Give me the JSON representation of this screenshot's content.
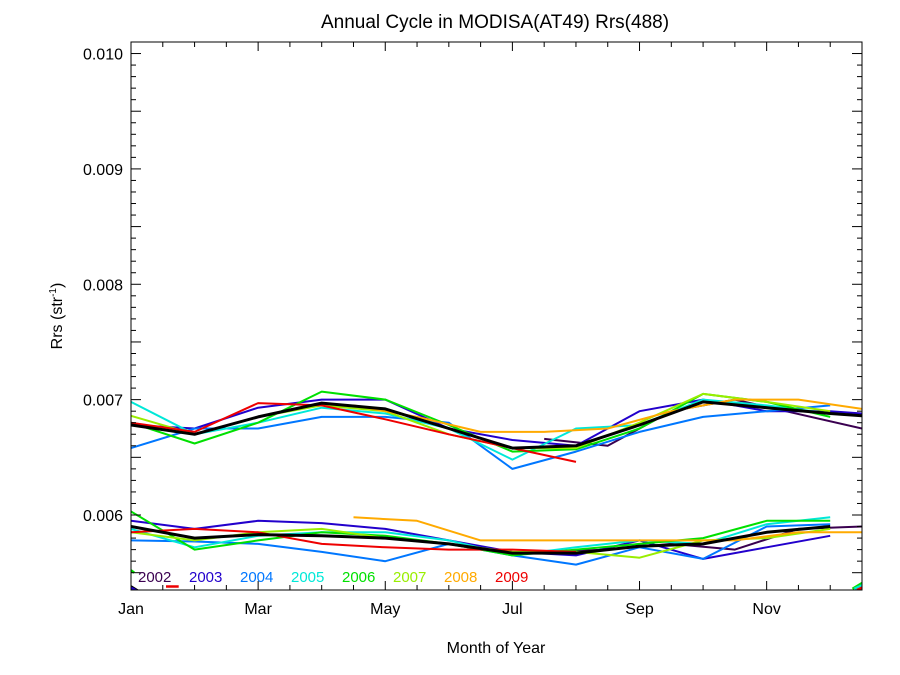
{
  "chart_data": {
    "type": "line",
    "title": "Annual Cycle in MODISA(AT49) Rrs(488)",
    "xlabel": "Month of Year",
    "ylabel_main": "Rrs (str",
    "ylabel_sup": "-1",
    "ylabel_close": ")",
    "xlim": [
      1,
      12.5
    ],
    "ylim": [
      0.00535,
      0.0101
    ],
    "xticks": [
      {
        "value": 1,
        "label": "Jan"
      },
      {
        "value": 3,
        "label": "Mar"
      },
      {
        "value": 5,
        "label": "May"
      },
      {
        "value": 7,
        "label": "Jul"
      },
      {
        "value": 9,
        "label": "Sep"
      },
      {
        "value": 11,
        "label": "Nov"
      }
    ],
    "yticks": [
      {
        "value": 0.006,
        "label": "0.006"
      },
      {
        "value": 0.007,
        "label": "0.007"
      },
      {
        "value": 0.008,
        "label": "0.008"
      },
      {
        "value": 0.009,
        "label": "0.009"
      },
      {
        "value": 0.01,
        "label": "0.010"
      }
    ],
    "grid": false,
    "legend_position": "bottom-left",
    "series": [
      {
        "name": "2002",
        "color": "#3a0050",
        "upper": [
          [
            7.5,
            0.00666
          ],
          [
            8.5,
            0.0066
          ],
          [
            9.5,
            0.0069
          ],
          [
            10.5,
            0.007
          ],
          [
            12.5,
            0.00675
          ]
        ],
        "lower": [
          [
            7.5,
            0.00568
          ],
          [
            8.5,
            0.0057
          ],
          [
            9.5,
            0.00575
          ],
          [
            10.5,
            0.0057
          ],
          [
            11.5,
            0.00588
          ],
          [
            12.5,
            0.0059
          ]
        ]
      },
      {
        "name": "2003",
        "color": "#2200cc",
        "upper": [
          [
            1,
            0.00678
          ],
          [
            2,
            0.00675
          ],
          [
            3,
            0.00693
          ],
          [
            4,
            0.007
          ],
          [
            5,
            0.007
          ],
          [
            6,
            0.00675
          ],
          [
            7,
            0.00665
          ],
          [
            8,
            0.0066
          ],
          [
            9,
            0.0069
          ],
          [
            10,
            0.007
          ],
          [
            11,
            0.0069
          ],
          [
            12,
            0.0069
          ],
          [
            12.5,
            0.00688
          ]
        ],
        "lower": [
          [
            1,
            0.00595
          ],
          [
            2,
            0.00588
          ],
          [
            3,
            0.00595
          ],
          [
            4,
            0.00593
          ],
          [
            5,
            0.00588
          ],
          [
            6,
            0.00578
          ],
          [
            7,
            0.00568
          ],
          [
            8,
            0.00565
          ],
          [
            9,
            0.00578
          ],
          [
            10,
            0.00562
          ],
          [
            11,
            0.00572
          ],
          [
            12,
            0.00582
          ]
        ]
      },
      {
        "name": "2004",
        "color": "#0077ff",
        "upper": [
          [
            1,
            0.00658
          ],
          [
            2,
            0.00675
          ],
          [
            3,
            0.00675
          ],
          [
            4,
            0.00685
          ],
          [
            5,
            0.00685
          ],
          [
            6,
            0.0068
          ],
          [
            7,
            0.0064
          ],
          [
            8,
            0.00655
          ],
          [
            9,
            0.00672
          ],
          [
            10,
            0.00685
          ],
          [
            11,
            0.0069
          ],
          [
            12,
            0.00695
          ]
        ],
        "lower": [
          [
            1,
            0.00578
          ],
          [
            2,
            0.00577
          ],
          [
            3,
            0.00575
          ],
          [
            4,
            0.00568
          ],
          [
            5,
            0.0056
          ],
          [
            6,
            0.00575
          ],
          [
            7,
            0.00565
          ],
          [
            8,
            0.00557
          ],
          [
            9,
            0.00572
          ],
          [
            10,
            0.00562
          ],
          [
            11,
            0.0059
          ],
          [
            12,
            0.00592
          ]
        ]
      },
      {
        "name": "2005",
        "color": "#00e8d8",
        "upper": [
          [
            1,
            0.00698
          ],
          [
            2,
            0.0067
          ],
          [
            3,
            0.0068
          ],
          [
            4,
            0.00693
          ],
          [
            5,
            0.00688
          ],
          [
            6,
            0.00675
          ],
          [
            7,
            0.00648
          ],
          [
            8,
            0.00675
          ],
          [
            9,
            0.00678
          ],
          [
            10,
            0.007
          ],
          [
            11,
            0.00695
          ],
          [
            12,
            0.00688
          ]
        ],
        "lower": [
          [
            1,
            0.00588
          ],
          [
            2,
            0.00572
          ],
          [
            3,
            0.00582
          ],
          [
            4,
            0.00585
          ],
          [
            5,
            0.00585
          ],
          [
            6,
            0.00578
          ],
          [
            7,
            0.00565
          ],
          [
            8,
            0.00572
          ],
          [
            9,
            0.00578
          ],
          [
            10,
            0.00575
          ],
          [
            11,
            0.00592
          ],
          [
            12,
            0.00598
          ]
        ]
      },
      {
        "name": "2006",
        "color": "#00e000",
        "upper": [
          [
            1,
            0.0068
          ],
          [
            2,
            0.00662
          ],
          [
            3,
            0.0068
          ],
          [
            4,
            0.00707
          ],
          [
            5,
            0.007
          ],
          [
            6,
            0.00678
          ],
          [
            7,
            0.00655
          ],
          [
            8,
            0.00657
          ],
          [
            9,
            0.00675
          ],
          [
            10,
            0.00705
          ],
          [
            11,
            0.00698
          ],
          [
            12,
            0.00685
          ]
        ],
        "lower": [
          [
            1,
            0.00603
          ],
          [
            2,
            0.0057
          ],
          [
            3,
            0.00578
          ],
          [
            4,
            0.00585
          ],
          [
            5,
            0.00582
          ],
          [
            6,
            0.00575
          ],
          [
            7,
            0.00565
          ],
          [
            8,
            0.0057
          ],
          [
            9,
            0.00575
          ],
          [
            10,
            0.0058
          ],
          [
            11,
            0.00595
          ],
          [
            12,
            0.00595
          ]
        ]
      },
      {
        "name": "2007",
        "color": "#99ee00",
        "upper": [
          [
            1,
            0.00686
          ],
          [
            2,
            0.0067
          ],
          [
            3,
            0.00685
          ],
          [
            4,
            0.00695
          ],
          [
            5,
            0.0069
          ],
          [
            6,
            0.0067
          ],
          [
            7,
            0.00658
          ],
          [
            8,
            0.00658
          ],
          [
            9,
            0.0068
          ],
          [
            10,
            0.00705
          ],
          [
            11,
            0.00698
          ],
          [
            12,
            0.0069
          ]
        ],
        "lower": [
          [
            1,
            0.00585
          ],
          [
            2,
            0.00578
          ],
          [
            3,
            0.00585
          ],
          [
            4,
            0.00588
          ],
          [
            5,
            0.0058
          ],
          [
            6,
            0.00575
          ],
          [
            7,
            0.00568
          ],
          [
            8,
            0.00568
          ],
          [
            9,
            0.00563
          ],
          [
            10,
            0.00578
          ],
          [
            11,
            0.0058
          ],
          [
            12,
            0.00588
          ]
        ]
      },
      {
        "name": "2008",
        "color": "#ffaa00",
        "upper": [
          [
            4.5,
            0.00695
          ],
          [
            5.5,
            0.00685
          ],
          [
            6.5,
            0.00672
          ],
          [
            7.5,
            0.00672
          ],
          [
            8.5,
            0.00675
          ],
          [
            9.5,
            0.0069
          ],
          [
            10.5,
            0.007
          ],
          [
            11.5,
            0.007
          ],
          [
            12.5,
            0.00692
          ]
        ],
        "lower": [
          [
            4.5,
            0.00598
          ],
          [
            5.5,
            0.00595
          ],
          [
            6.5,
            0.00578
          ],
          [
            7.5,
            0.00578
          ],
          [
            8.5,
            0.00578
          ],
          [
            9.5,
            0.00578
          ],
          [
            10.5,
            0.00578
          ],
          [
            11.5,
            0.00585
          ],
          [
            12.5,
            0.00585
          ]
        ]
      },
      {
        "name": "2009",
        "color": "#ee0000",
        "upper": [
          [
            1,
            0.0068
          ],
          [
            2,
            0.00672
          ],
          [
            3,
            0.00697
          ],
          [
            4,
            0.00695
          ],
          [
            5,
            0.00683
          ],
          [
            6,
            0.0067
          ],
          [
            7,
            0.00658
          ],
          [
            8,
            0.00646
          ]
        ],
        "lower": [
          [
            1,
            0.00585
          ],
          [
            2,
            0.00588
          ],
          [
            3,
            0.00585
          ],
          [
            4,
            0.00575
          ],
          [
            5,
            0.00572
          ],
          [
            6,
            0.0057
          ],
          [
            7,
            0.0057
          ],
          [
            8,
            0.00568
          ]
        ]
      }
    ],
    "mean_series": {
      "color": "#000000",
      "upper": [
        [
          1,
          0.00678
        ],
        [
          2,
          0.0067
        ],
        [
          3,
          0.00685
        ],
        [
          4,
          0.00697
        ],
        [
          5,
          0.00692
        ],
        [
          6,
          0.00675
        ],
        [
          7,
          0.00658
        ],
        [
          8,
          0.0066
        ],
        [
          9,
          0.00678
        ],
        [
          10,
          0.00698
        ],
        [
          11,
          0.00693
        ],
        [
          12,
          0.00688
        ],
        [
          12.5,
          0.00686
        ]
      ],
      "lower": [
        [
          1,
          0.0059
        ],
        [
          2,
          0.0058
        ],
        [
          3,
          0.00583
        ],
        [
          4,
          0.00582
        ],
        [
          5,
          0.0058
        ],
        [
          6,
          0.00575
        ],
        [
          7,
          0.00567
        ],
        [
          8,
          0.00567
        ],
        [
          9,
          0.00573
        ],
        [
          10,
          0.00575
        ],
        [
          11,
          0.00585
        ],
        [
          12,
          0.0059
        ]
      ]
    },
    "bottom_fragments": [
      {
        "color": "#000000",
        "points": [
          [
            1,
            0.00538
          ],
          [
            1.15,
            0.00533
          ]
        ]
      },
      {
        "color": "#2200cc",
        "points": [
          [
            1,
            0.00537
          ],
          [
            1.1,
            0.00534
          ]
        ]
      },
      {
        "color": "#ee0000",
        "points": [
          [
            1.55,
            0.00538
          ],
          [
            1.75,
            0.00538
          ]
        ]
      },
      {
        "color": "#00e000",
        "points": [
          [
            1,
            0.00552
          ],
          [
            1.05,
            0.0055
          ]
        ]
      },
      {
        "color": "#00e000",
        "points": [
          [
            12.35,
            0.00536
          ],
          [
            12.5,
            0.00541
          ]
        ]
      },
      {
        "color": "#00e8d8",
        "points": [
          [
            12.38,
            0.00536
          ],
          [
            12.5,
            0.00539
          ]
        ]
      },
      {
        "color": "#ee0000",
        "points": [
          [
            12.42,
            0.00535
          ],
          [
            12.5,
            0.00537
          ]
        ]
      }
    ]
  }
}
